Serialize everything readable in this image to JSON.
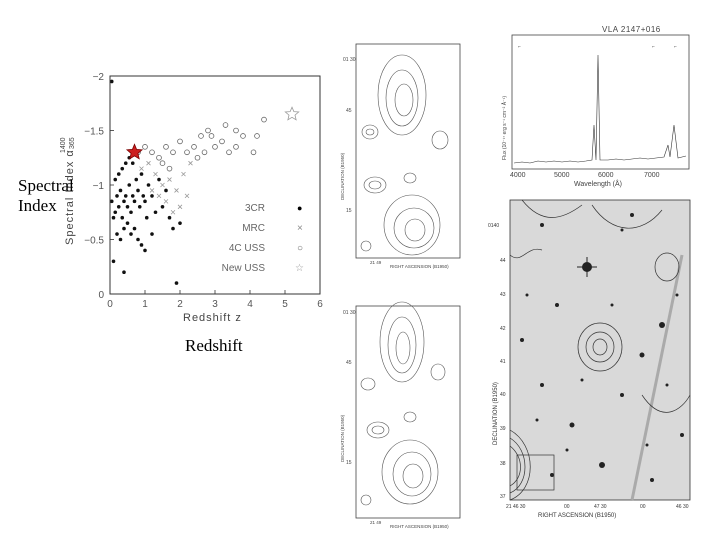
{
  "scatter_panel": {
    "ylabel": "Spectral Index α",
    "ylabel_sup": "1400",
    "ylabel_sub": "365",
    "xlabel": "Redshift z",
    "xticks": [
      "0",
      "1",
      "2",
      "3",
      "4",
      "5",
      "6"
    ],
    "yticks": [
      "−2",
      "−1.5",
      "−1",
      "−0.5",
      "0"
    ],
    "legend": [
      {
        "label": "3CR",
        "symbol": "●"
      },
      {
        "label": "MRC",
        "symbol": "×"
      },
      {
        "label": "4C USS",
        "symbol": "○"
      },
      {
        "label": "New USS",
        "symbol": "☆"
      }
    ]
  },
  "overlay_labels": {
    "spectral_line1": "Spectral",
    "spectral_line2": "Index",
    "redshift": "Redshift"
  },
  "spectrum_panel": {
    "title": "VLA 2147+016",
    "xlabel": "Wavelength (Å)",
    "ylabel": "Flux (10⁻¹⁷ erg s⁻¹ cm⁻² Å⁻¹)",
    "xticks": [
      "4000",
      "5000",
      "6000",
      "7000"
    ]
  },
  "radio_map_top": {
    "xlabel": "RIGHT ASCENSION (B1950)",
    "ylabel": "DECLINATION (B1950)",
    "ra_label": "21 49",
    "dec_labels": [
      "01 30",
      "45",
      "15"
    ]
  },
  "radio_map_bottom": {
    "xlabel": "RIGHT ASCENSION (B1950)",
    "ylabel": "DECLINATION (B1950)",
    "ra_label": "21 49",
    "dec_labels": [
      "01 30",
      "45",
      "15"
    ]
  },
  "optical_panel": {
    "xlabel": "RIGHT ASCENSION (B1950)",
    "ylabel": "DECLINATION (B1950)",
    "ra_ticks": [
      "21 46 30",
      "00",
      "47 30",
      "00",
      "46 30"
    ],
    "dec_ticks": [
      "0140",
      "44",
      "43",
      "42",
      "41",
      "40",
      "39",
      "38",
      "37"
    ]
  },
  "chart_data": {
    "type": "scatter",
    "xlabel": "Redshift z",
    "ylabel": "Spectral Index α 1400/365",
    "xlim": [
      0,
      6
    ],
    "ylim": [
      0,
      -2
    ],
    "legend_position": "bottom-right",
    "series": [
      {
        "name": "3CR",
        "marker": "filled-circle",
        "points": [
          [
            0.05,
            -0.85
          ],
          [
            0.1,
            -0.7
          ],
          [
            0.15,
            -0.75
          ],
          [
            0.2,
            -0.9
          ],
          [
            0.25,
            -0.8
          ],
          [
            0.3,
            -0.95
          ],
          [
            0.35,
            -0.7
          ],
          [
            0.4,
            -0.85
          ],
          [
            0.45,
            -0.9
          ],
          [
            0.5,
            -0.8
          ],
          [
            0.55,
            -1.0
          ],
          [
            0.6,
            -0.75
          ],
          [
            0.65,
            -0.9
          ],
          [
            0.7,
            -0.85
          ],
          [
            0.75,
            -1.05
          ],
          [
            0.8,
            -0.95
          ],
          [
            0.85,
            -0.8
          ],
          [
            0.9,
            -1.1
          ],
          [
            0.95,
            -0.9
          ],
          [
            1.0,
            -0.85
          ],
          [
            1.05,
            -0.7
          ],
          [
            1.1,
            -1.0
          ],
          [
            1.2,
            -0.9
          ],
          [
            1.3,
            -0.75
          ],
          [
            1.4,
            -1.05
          ],
          [
            1.5,
            -0.8
          ],
          [
            1.6,
            -0.95
          ],
          [
            1.7,
            -0.7
          ],
          [
            1.8,
            -0.6
          ],
          [
            2.0,
            -0.65
          ],
          [
            0.05,
            -1.95
          ],
          [
            0.1,
            -0.3
          ],
          [
            0.2,
            -0.55
          ],
          [
            0.3,
            -0.5
          ],
          [
            0.4,
            -0.6
          ],
          [
            0.5,
            -0.65
          ],
          [
            0.6,
            -0.55
          ],
          [
            0.7,
            -0.6
          ],
          [
            0.8,
            -0.5
          ],
          [
            0.9,
            -0.45
          ],
          [
            1.0,
            -0.4
          ],
          [
            1.2,
            -0.55
          ],
          [
            0.15,
            -1.05
          ],
          [
            0.25,
            -1.1
          ],
          [
            0.35,
            -1.15
          ],
          [
            0.45,
            -1.2
          ],
          [
            0.55,
            -1.25
          ],
          [
            0.65,
            -1.2
          ],
          [
            1.9,
            -0.1
          ],
          [
            0.4,
            -0.2
          ]
        ]
      },
      {
        "name": "MRC",
        "marker": "cross",
        "points": [
          [
            0.9,
            -1.15
          ],
          [
            1.1,
            -1.2
          ],
          [
            1.3,
            -1.1
          ],
          [
            1.5,
            -1.0
          ],
          [
            1.7,
            -1.05
          ],
          [
            1.9,
            -0.95
          ],
          [
            2.1,
            -1.1
          ],
          [
            2.3,
            -1.2
          ],
          [
            1.6,
            -0.85
          ],
          [
            1.8,
            -0.75
          ],
          [
            2.0,
            -0.8
          ],
          [
            1.4,
            -0.9
          ],
          [
            2.2,
            -0.9
          ],
          [
            1.2,
            -0.95
          ]
        ]
      },
      {
        "name": "4C USS",
        "marker": "open-circle",
        "points": [
          [
            0.8,
            -1.3
          ],
          [
            1.0,
            -1.35
          ],
          [
            1.2,
            -1.3
          ],
          [
            1.4,
            -1.25
          ],
          [
            1.6,
            -1.35
          ],
          [
            1.8,
            -1.3
          ],
          [
            2.0,
            -1.4
          ],
          [
            2.2,
            -1.3
          ],
          [
            2.4,
            -1.35
          ],
          [
            2.6,
            -1.45
          ],
          [
            2.8,
            -1.5
          ],
          [
            3.0,
            -1.35
          ],
          [
            3.2,
            -1.4
          ],
          [
            3.4,
            -1.3
          ],
          [
            3.6,
            -1.5
          ],
          [
            3.8,
            -1.45
          ],
          [
            3.6,
            -1.35
          ],
          [
            4.1,
            -1.3
          ],
          [
            4.2,
            -1.45
          ],
          [
            4.4,
            -1.6
          ],
          [
            2.5,
            -1.25
          ],
          [
            2.7,
            -1.3
          ],
          [
            1.5,
            -1.2
          ],
          [
            1.7,
            -1.15
          ],
          [
            2.9,
            -1.45
          ],
          [
            3.3,
            -1.55
          ]
        ]
      },
      {
        "name": "New USS",
        "marker": "open-star",
        "points": [
          [
            5.2,
            -1.65
          ]
        ]
      }
    ],
    "highlight": {
      "marker": "red-star",
      "point": [
        0.7,
        -1.3
      ]
    }
  }
}
